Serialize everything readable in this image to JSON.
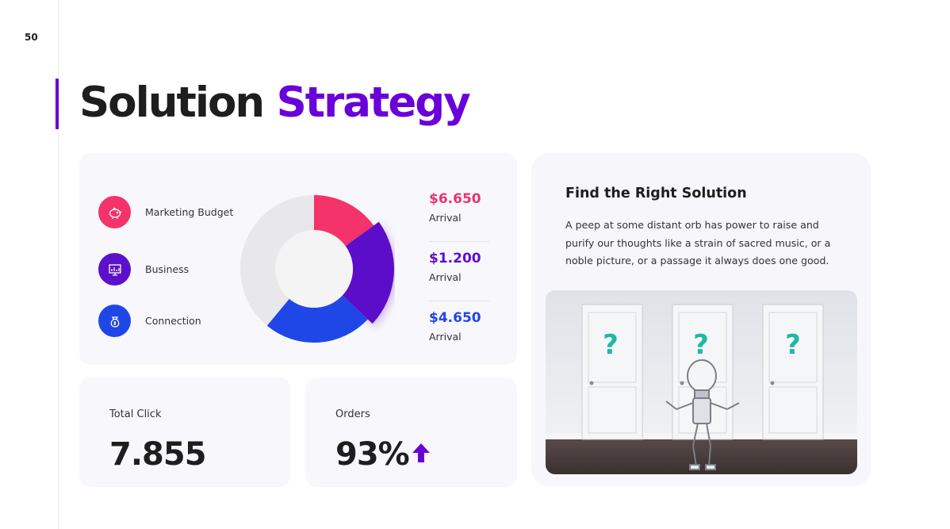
{
  "page": {
    "number": "50"
  },
  "title": {
    "part1": "Solution",
    "part2": "Strategy"
  },
  "legend": [
    {
      "label": "Marketing Budget",
      "icon": "piggy-bank-icon",
      "color": "#f4336a"
    },
    {
      "label": "Business",
      "icon": "presentation-chart-icon",
      "color": "#5b10c9"
    },
    {
      "label": "Connection",
      "icon": "money-bag-icon",
      "color": "#1f47e8"
    }
  ],
  "chart_data": {
    "type": "pie",
    "donut": true,
    "values": [
      15,
      22,
      24,
      39
    ],
    "colors": [
      "#f4336a",
      "#5b10c9",
      "#1f47e8",
      "#e8e8ea"
    ]
  },
  "values": [
    {
      "amount": "$6.650",
      "sub": "Arrival",
      "color": "#e8336d"
    },
    {
      "amount": "$1.200",
      "sub": "Arrival",
      "color": "#5b10c9"
    },
    {
      "amount": "$4.650",
      "sub": "Arrival",
      "color": "#1f47e8"
    }
  ],
  "stats": {
    "click": {
      "label": "Total Click",
      "value": "7.855"
    },
    "orders": {
      "label": "Orders",
      "value": "93%",
      "trend_icon": "arrow-up-icon",
      "trend_color": "#6a00d9"
    }
  },
  "solution": {
    "title": "Find the Right Solution",
    "text": "A peep at some distant orb has power to raise and purify our thoughts like a strain of sacred music, or a noble picture, or a passage it always does one good.",
    "image_marks": [
      "?",
      "?",
      "?"
    ]
  }
}
